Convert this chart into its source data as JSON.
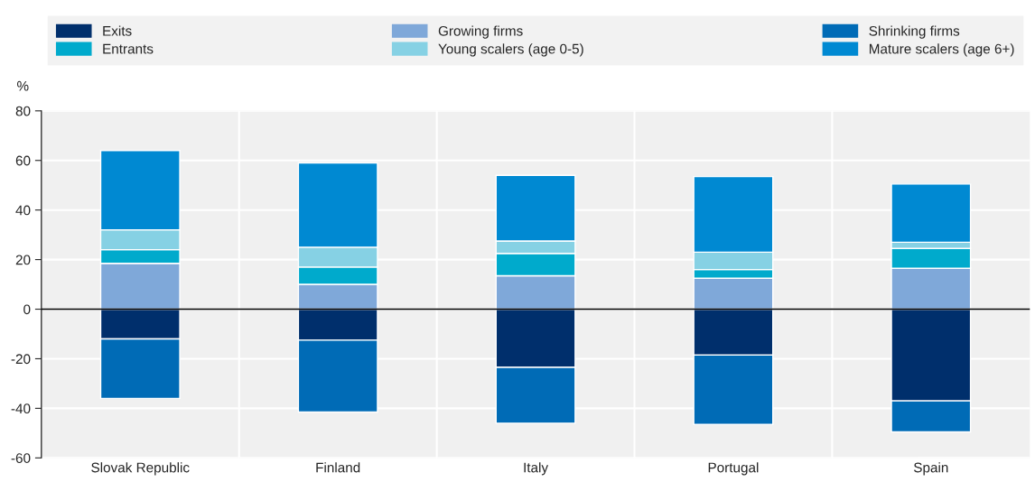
{
  "chart_data": {
    "type": "bar",
    "stacked": true,
    "ylabel": "%",
    "categories": [
      "Slovak Republic",
      "Finland",
      "Italy",
      "Portugal",
      "Spain"
    ],
    "series": [
      {
        "name": "Exits",
        "color": "#002f6c",
        "values": [
          -12,
          -12.5,
          -23.5,
          -18.5,
          -37
        ]
      },
      {
        "name": "Growing firms",
        "color": "#7fa8d9",
        "values": [
          18.5,
          10,
          13.5,
          12.5,
          16.5
        ]
      },
      {
        "name": "Shrinking firms",
        "color": "#006bb6",
        "values": [
          -24,
          -29,
          -22.5,
          -28,
          -12.5
        ]
      },
      {
        "name": "Entrants",
        "color": "#00aacc",
        "values": [
          5.5,
          7,
          9,
          3.5,
          8
        ]
      },
      {
        "name": "Young scalers (age 0-5)",
        "color": "#86d1e4",
        "values": [
          8,
          8,
          5,
          7,
          2.5
        ]
      },
      {
        "name": "Mature scalers (age 6+)",
        "color": "#0089d2",
        "values": [
          32,
          34,
          26.5,
          30.5,
          23.5
        ]
      }
    ],
    "ylim": [
      -60,
      80
    ],
    "yticks": [
      -60,
      -40,
      -20,
      0,
      20,
      40,
      60,
      80
    ],
    "grid": true,
    "legend": "top"
  }
}
